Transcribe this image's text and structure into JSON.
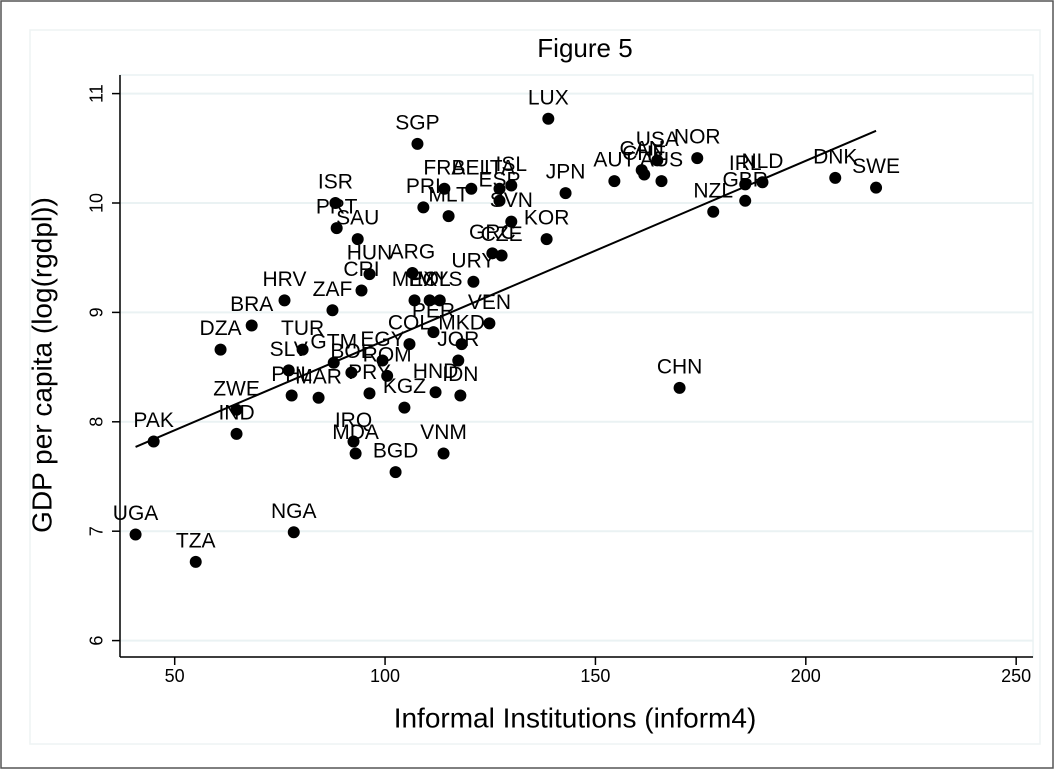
{
  "chart_data": {
    "type": "scatter",
    "title": "Figure 5",
    "x_label": "Informal Institutions (inform4)",
    "y_label": "GDP per capita (log(rgdpl))",
    "xlim": [
      37,
      254
    ],
    "ylim": [
      5.85,
      11.17
    ],
    "xticks": [
      50,
      100,
      150,
      200,
      250
    ],
    "yticks": [
      6,
      7,
      8,
      9,
      10,
      11
    ],
    "grid": true,
    "color": "#000000",
    "labels": [
      "UGA",
      "TZA",
      "NGA",
      "PAK",
      "ZWE",
      "IND",
      "DZA",
      "BRA",
      "HRV",
      "ZAF",
      "TUR",
      "SLV",
      "PHL",
      "ISR",
      "PRT",
      "SAU",
      "SGP",
      "LUX",
      "FRA",
      "BEL",
      "JPN",
      "AUT",
      "CHE",
      "USA",
      "NOR",
      "AUS",
      "CAN",
      "NLD",
      "IRL",
      "GBR",
      "NZL",
      "DNK",
      "SWE",
      "CHN",
      "KOR",
      "GRC",
      "CZE",
      "SVN",
      "ESP",
      "MLT",
      "PRI",
      "ITA",
      "ISL",
      "HUN",
      "ARG",
      "URY",
      "POL",
      "MEX",
      "MYS",
      "VEN",
      "CRI",
      "COL",
      "MKD",
      "JOR",
      "IDN",
      "KGZ",
      "EGY",
      "BOL",
      "GTM",
      "MAR",
      "PRY",
      "IRQ",
      "MDA",
      "BGD",
      "VNM",
      "HND",
      "ROM",
      "PER"
    ],
    "x": [
      40.7,
      55.0,
      78.3,
      45.0,
      64.7,
      64.7,
      60.9,
      68.3,
      76.1,
      87.5,
      80.4,
      77.1,
      77.8,
      88.2,
      88.5,
      93.5,
      107.7,
      138.8,
      114.1,
      120.5,
      142.9,
      154.5,
      161.6,
      164.7,
      174.2,
      165.7,
      161.0,
      189.7,
      185.6,
      185.6,
      178.0,
      207.0,
      216.7,
      170.0,
      138.4,
      125.5,
      127.7,
      130.0,
      127.2,
      115.1,
      109.1,
      127.2,
      130.0,
      96.3,
      106.5,
      121.0,
      110.6,
      107.0,
      113.0,
      124.8,
      94.4,
      105.8,
      118.2,
      117.4,
      117.9,
      104.6,
      99.4,
      92.0,
      87.8,
      84.2,
      96.3,
      92.5,
      93.0,
      102.5,
      113.9,
      112.0,
      100.5,
      111.5
    ],
    "values": [
      6.97,
      6.72,
      6.99,
      7.82,
      8.11,
      7.89,
      8.66,
      8.88,
      9.11,
      9.02,
      8.66,
      8.47,
      8.24,
      10.0,
      9.77,
      9.67,
      10.54,
      10.77,
      10.13,
      10.13,
      10.09,
      10.2,
      10.26,
      10.39,
      10.41,
      10.2,
      10.3,
      10.19,
      10.17,
      10.02,
      9.92,
      10.23,
      10.14,
      8.31,
      9.67,
      9.54,
      9.52,
      9.83,
      10.02,
      9.88,
      9.96,
      10.13,
      10.16,
      9.35,
      9.36,
      9.28,
      9.11,
      9.11,
      9.11,
      8.9,
      9.2,
      8.71,
      8.71,
      8.56,
      8.24,
      8.13,
      8.56,
      8.45,
      8.54,
      8.22,
      8.26,
      7.82,
      7.71,
      7.54,
      7.71,
      8.27,
      8.42,
      8.82
    ],
    "fit_x": [
      40.7,
      216.7
    ],
    "fit_y": [
      7.77,
      10.66
    ]
  }
}
